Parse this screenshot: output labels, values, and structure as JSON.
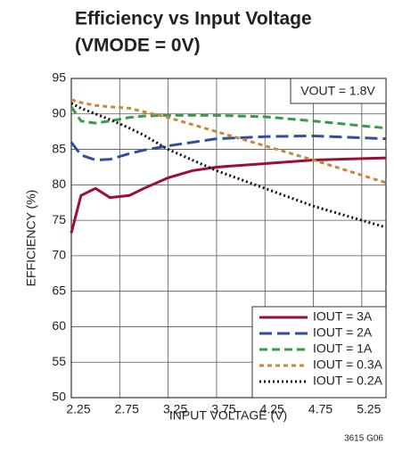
{
  "chart_data": {
    "type": "line",
    "title": "Efficiency vs Input Voltage",
    "subtitle": "(VMODE = 0V)",
    "annotation": "VOUT = 1.8V",
    "footnote": "3615 G06",
    "xlabel": "INPUT VOLTAGE (V)",
    "ylabel": "EFFICIENCY (%)",
    "x": [
      2.25,
      2.35,
      2.5,
      2.65,
      2.85,
      3.0,
      3.25,
      3.5,
      3.75,
      4.25,
      4.75,
      5.5
    ],
    "series": [
      {
        "name": "IOUT = 3A",
        "color": "#9b1030",
        "dash": "solid",
        "values": [
          73.2,
          78.5,
          79.5,
          78.2,
          78.5,
          79.5,
          81,
          82,
          82.5,
          83,
          83.5,
          83.8
        ]
      },
      {
        "name": "IOUT = 2A",
        "color": "#2f4ea0",
        "dash": "long",
        "values": [
          86,
          84.2,
          83.5,
          83.6,
          84.4,
          84.9,
          85.5,
          86,
          86.5,
          86.8,
          86.9,
          86.5
        ]
      },
      {
        "name": "IOUT = 1A",
        "color": "#3a9a4a",
        "dash": "medium",
        "values": [
          91,
          89,
          88.7,
          89,
          89.5,
          89.7,
          89.8,
          89.8,
          89.8,
          89.6,
          89,
          88
        ]
      },
      {
        "name": "IOUT = 0.3A",
        "color": "#c8873a",
        "dash": "short",
        "values": [
          92,
          91.6,
          91.2,
          91,
          90.8,
          90.3,
          89.5,
          88.5,
          87.5,
          85.5,
          83.5,
          80.3
        ]
      },
      {
        "name": "IOUT = 0.2A",
        "color": "#111111",
        "dash": "dotted",
        "values": [
          91.5,
          90.8,
          90,
          89.2,
          88,
          87,
          85,
          83.5,
          82,
          79.5,
          77,
          74
        ]
      }
    ],
    "xlim": [
      2.25,
      5.5
    ],
    "xticks": [
      2.25,
      2.75,
      3.25,
      3.75,
      4.25,
      4.75,
      5.25
    ],
    "ylim": [
      50,
      95
    ],
    "yticks": [
      50,
      55,
      60,
      65,
      70,
      75,
      80,
      85,
      90,
      95
    ],
    "grid": true,
    "legend": "lower right"
  }
}
